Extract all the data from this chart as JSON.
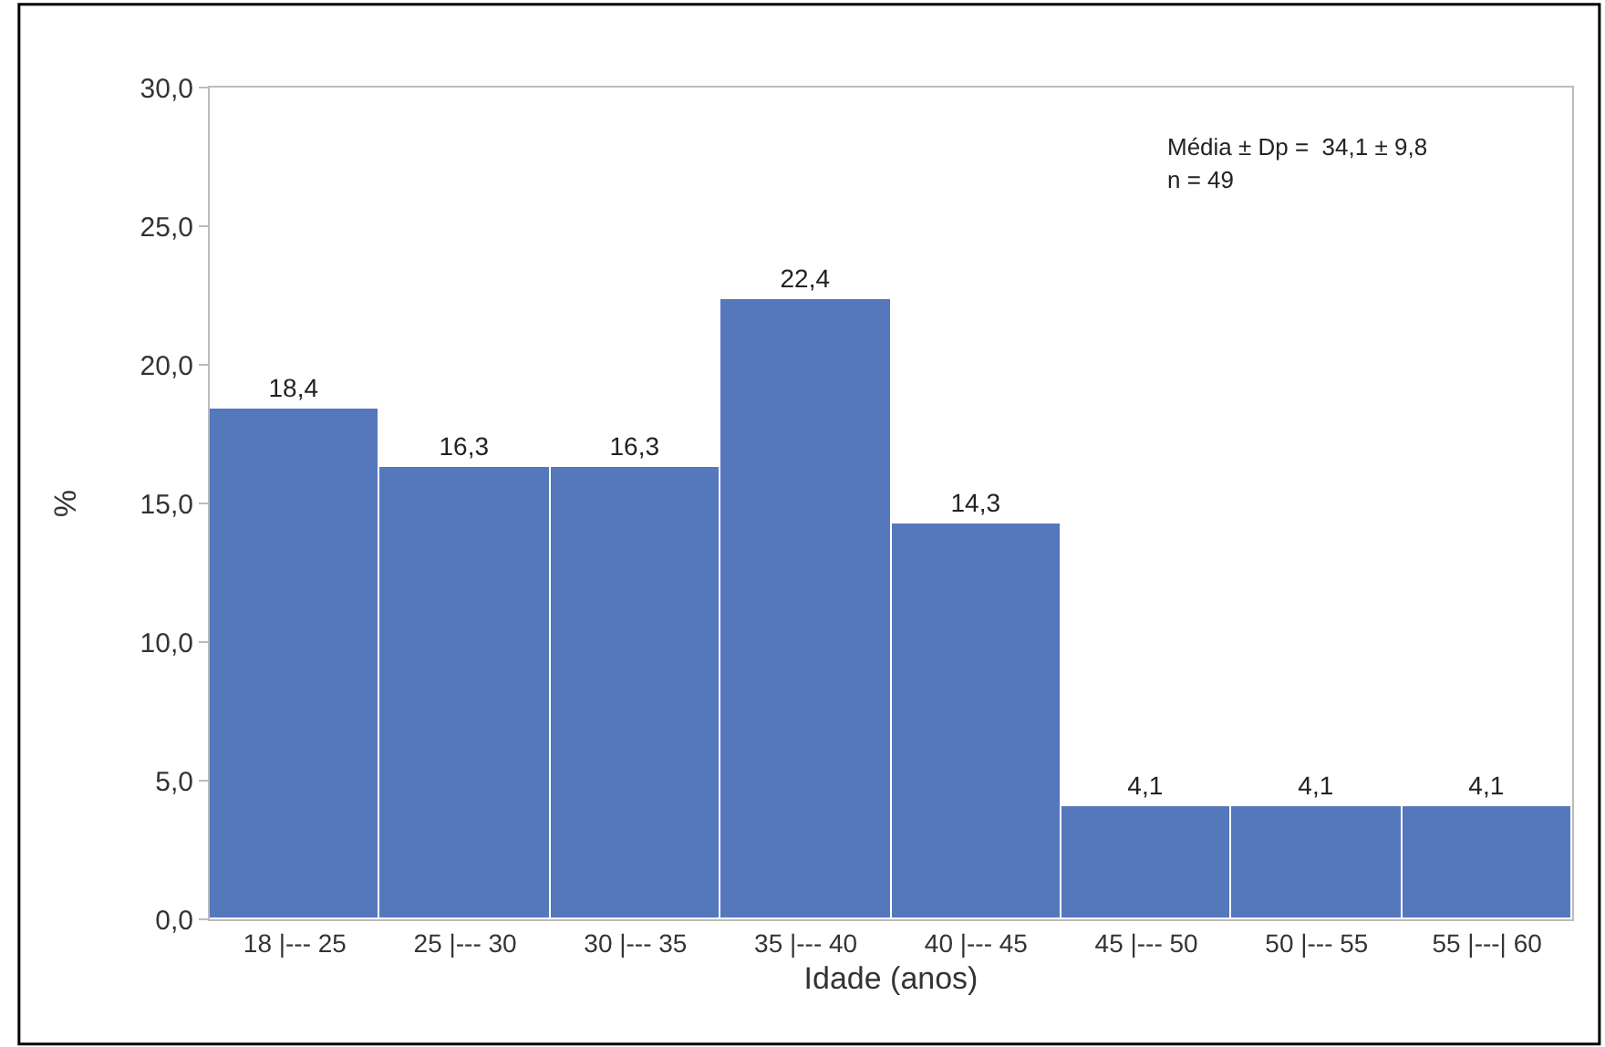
{
  "chart_data": {
    "type": "bar",
    "xlabel": "Idade (anos)",
    "ylabel": "%",
    "categories": [
      "18 |--- 25",
      "25 |--- 30",
      "30 |--- 35",
      "35 |--- 40",
      "40 |--- 45",
      "45 |--- 50",
      "50 |--- 55",
      "55 |---| 60"
    ],
    "values": [
      18.4,
      16.3,
      16.3,
      22.4,
      14.3,
      4.1,
      4.1,
      4.1
    ],
    "value_labels": [
      "18,4",
      "16,3",
      "16,3",
      "22,4",
      "14,3",
      "4,1",
      "4,1",
      "4,1"
    ],
    "color": "#5577bb",
    "ylim": [
      0,
      30
    ],
    "yticks": [
      {
        "value": 0,
        "label": "0,0"
      },
      {
        "value": 5,
        "label": "5,0"
      },
      {
        "value": 10,
        "label": "10,0"
      },
      {
        "value": 15,
        "label": "15,0"
      },
      {
        "value": 20,
        "label": "20,0"
      },
      {
        "value": 25,
        "label": "25,0"
      },
      {
        "value": 30,
        "label": "30,0"
      }
    ],
    "annotations": [
      "Média ± Dp =  34,1 ± 9,8",
      "n = 49"
    ]
  }
}
